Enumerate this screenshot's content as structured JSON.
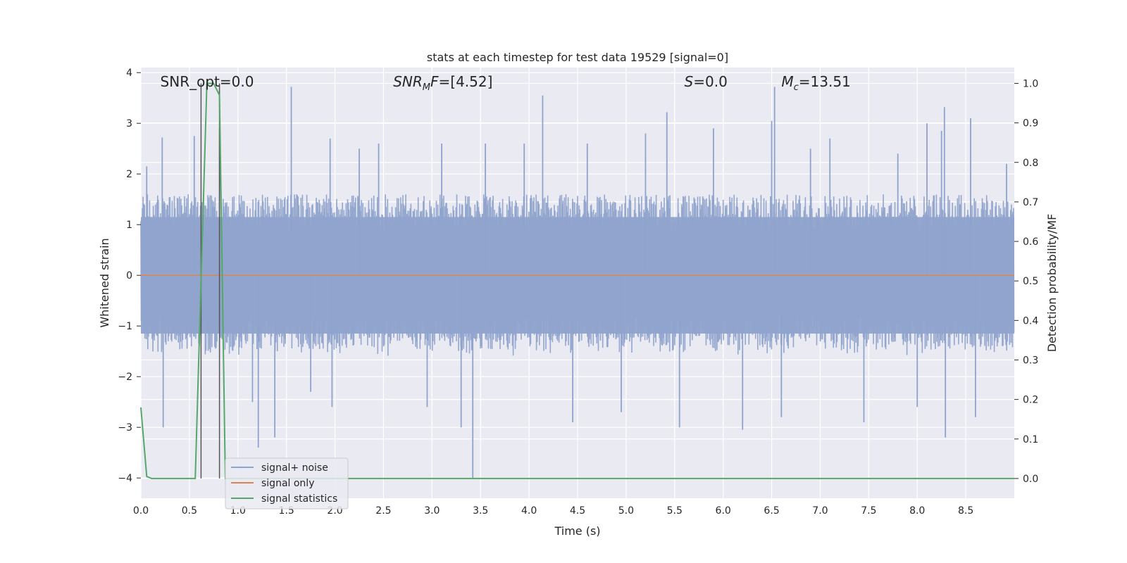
{
  "chart_data": {
    "type": "line",
    "title": "stats at each timestep for test data 19529 [signal=0]",
    "xlabel": "Time (s)",
    "ylabel_left": "Whitened strain",
    "ylabel_right": "Detection probability/MF",
    "xlim": [
      0.0,
      9.0
    ],
    "ylim_left": [
      -4.4,
      4.1
    ],
    "ylim_right": [
      -0.05,
      1.04
    ],
    "x_ticks": [
      0.0,
      0.5,
      1.0,
      1.5,
      2.0,
      2.5,
      3.0,
      3.5,
      4.0,
      4.5,
      5.0,
      5.5,
      6.0,
      6.5,
      7.0,
      7.5,
      8.0,
      8.5
    ],
    "x_tick_labels": [
      "0.0",
      "0.5",
      "1.0",
      "1.5",
      "2.0",
      "2.5",
      "3.0",
      "3.5",
      "4.0",
      "4.5",
      "5.0",
      "5.5",
      "6.0",
      "6.5",
      "7.0",
      "7.5",
      "8.0",
      "8.5"
    ],
    "y_left_ticks": [
      4,
      3,
      2,
      1,
      0,
      -1,
      -2,
      -3,
      -4
    ],
    "y_left_tick_labels": [
      "4",
      "3",
      "2",
      "1",
      "0",
      "−1",
      "−2",
      "−3",
      "−4"
    ],
    "y_right_ticks": [
      1.0,
      0.9,
      0.8,
      0.7,
      0.6,
      0.5,
      0.4,
      0.3,
      0.2,
      0.1,
      0.0
    ],
    "y_right_tick_labels": [
      "1.0",
      "0.9",
      "0.8",
      "0.7",
      "0.6",
      "0.5",
      "0.4",
      "0.3",
      "0.2",
      "0.1",
      "0.0"
    ],
    "grid": true,
    "legend_position": "lower-left",
    "annotations": [
      {
        "text": "SNR_opt=0.0",
        "x": 0.2,
        "italic_prefix": ""
      },
      {
        "text": "SNR_MF=[4.52]",
        "x": 2.6,
        "italic_prefix": "SNR"
      },
      {
        "text": "S=0.0",
        "x": 5.6,
        "italic_prefix": "S"
      },
      {
        "text": "M_c=13.51",
        "x": 6.6,
        "italic_prefix": "M"
      }
    ],
    "vertical_markers_x": [
      0.62,
      0.81
    ],
    "series": [
      {
        "name": "signal+ noise",
        "color": "#8fa3cc",
        "axis": "left",
        "kind": "noise",
        "envelope": 1.6,
        "spike_points": [
          {
            "x": 0.06,
            "y": 2.15
          },
          {
            "x": 0.22,
            "y": 2.72
          },
          {
            "x": 0.23,
            "y": -3.0
          },
          {
            "x": 0.55,
            "y": 2.75
          },
          {
            "x": 0.81,
            "y": 2.9
          },
          {
            "x": 1.15,
            "y": -2.5
          },
          {
            "x": 1.21,
            "y": -3.4
          },
          {
            "x": 1.38,
            "y": -3.2
          },
          {
            "x": 1.55,
            "y": 3.72
          },
          {
            "x": 1.75,
            "y": -2.3
          },
          {
            "x": 1.95,
            "y": 2.7
          },
          {
            "x": 1.97,
            "y": -2.6
          },
          {
            "x": 2.25,
            "y": 2.5
          },
          {
            "x": 2.45,
            "y": 2.6
          },
          {
            "x": 2.95,
            "y": -2.6
          },
          {
            "x": 3.1,
            "y": 2.6
          },
          {
            "x": 3.3,
            "y": -3.0
          },
          {
            "x": 3.42,
            "y": -4.0
          },
          {
            "x": 3.55,
            "y": 2.6
          },
          {
            "x": 3.95,
            "y": 2.6
          },
          {
            "x": 4.14,
            "y": 3.55
          },
          {
            "x": 4.45,
            "y": -2.9
          },
          {
            "x": 4.6,
            "y": 2.6
          },
          {
            "x": 4.95,
            "y": -2.7
          },
          {
            "x": 5.2,
            "y": 2.8
          },
          {
            "x": 5.42,
            "y": 3.22
          },
          {
            "x": 5.55,
            "y": -3.0
          },
          {
            "x": 5.9,
            "y": 2.9
          },
          {
            "x": 6.2,
            "y": -3.05
          },
          {
            "x": 6.5,
            "y": 3.05
          },
          {
            "x": 6.53,
            "y": 3.72
          },
          {
            "x": 6.6,
            "y": -2.8
          },
          {
            "x": 6.9,
            "y": 2.5
          },
          {
            "x": 7.1,
            "y": 2.7
          },
          {
            "x": 7.45,
            "y": -2.9
          },
          {
            "x": 7.8,
            "y": 2.4
          },
          {
            "x": 8.0,
            "y": -2.6
          },
          {
            "x": 8.1,
            "y": 3.0
          },
          {
            "x": 8.25,
            "y": 2.85
          },
          {
            "x": 8.28,
            "y": 3.32
          },
          {
            "x": 8.29,
            "y": -3.2
          },
          {
            "x": 8.55,
            "y": 3.1
          },
          {
            "x": 8.6,
            "y": -2.8
          },
          {
            "x": 8.92,
            "y": 2.2
          }
        ]
      },
      {
        "name": "signal only",
        "color": "#dd8452",
        "axis": "left",
        "x": [
          0.0,
          9.0
        ],
        "y": [
          0.0,
          0.0
        ]
      },
      {
        "name": "signal statistics",
        "color": "#55a868",
        "axis": "right",
        "x": [
          0.0,
          0.06,
          0.11,
          0.17,
          0.56,
          0.62,
          0.68,
          0.75,
          0.81,
          0.87,
          0.93,
          9.0
        ],
        "y": [
          0.18,
          0.005,
          0.0,
          0.0,
          0.0,
          0.5,
          1.0,
          1.0,
          0.97,
          0.0,
          0.0,
          0.0
        ]
      }
    ]
  }
}
